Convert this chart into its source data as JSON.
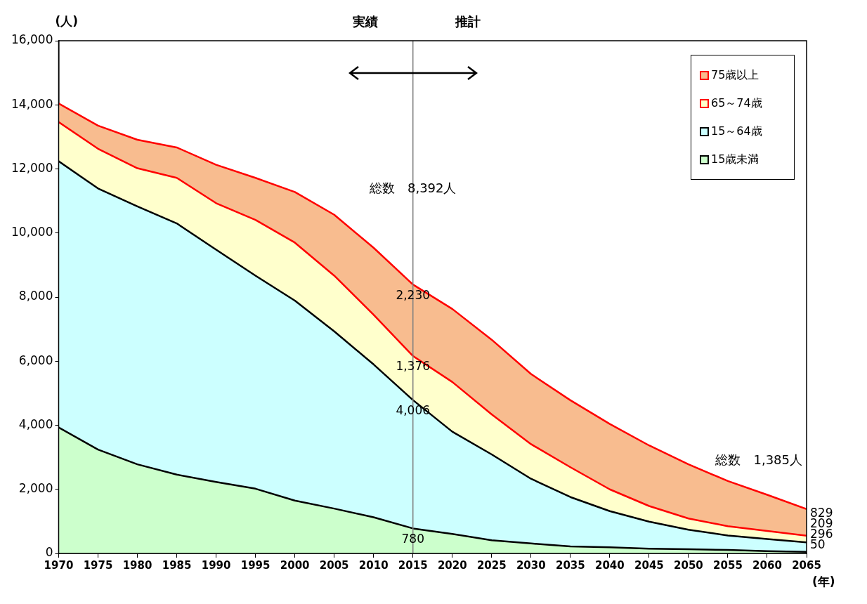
{
  "chart_data": {
    "type": "area",
    "stacked": true,
    "xlabel": "(年)",
    "ylabel": "(人)",
    "x": [
      1970,
      1975,
      1980,
      1985,
      1990,
      1995,
      2000,
      2005,
      2010,
      2015,
      2020,
      2025,
      2030,
      2035,
      2040,
      2045,
      2050,
      2055,
      2060,
      2065
    ],
    "xlim": [
      1970,
      2065
    ],
    "xticks": [
      1970,
      1975,
      1980,
      1985,
      1990,
      1995,
      2000,
      2005,
      2010,
      2015,
      2020,
      2025,
      2030,
      2035,
      2040,
      2045,
      2050,
      2055,
      2060,
      2065
    ],
    "ylim": [
      0,
      16000
    ],
    "yticks": [
      0,
      {
        "value": 2000,
        "label": "2,000"
      },
      {
        "value": 4000,
        "label": "4,000"
      },
      {
        "value": 6000,
        "label": "6,000"
      },
      {
        "value": 8000,
        "label": "8,000"
      },
      {
        "value": 10000,
        "label": "10,000"
      },
      {
        "value": 12000,
        "label": "12,000"
      },
      {
        "value": 14000,
        "label": "14,000"
      },
      {
        "value": 16000,
        "label": "16,000"
      }
    ],
    "grid": false,
    "legend": "top right",
    "marker": "none",
    "series": [
      {
        "name": "15歳未満",
        "color": "#ccffcc",
        "values": [
          3930,
          3240,
          2780,
          2460,
          2230,
          2020,
          1650,
          1400,
          1130,
          780,
          610,
          410,
          310,
          220,
          190,
          150,
          130,
          110,
          70,
          50
        ],
        "value_labels": [
          null,
          null,
          null,
          null,
          null,
          null,
          null,
          null,
          null,
          "780",
          null,
          null,
          null,
          null,
          null,
          null,
          null,
          null,
          null,
          "50"
        ]
      },
      {
        "name": "15～64歳",
        "color": "#ccffff",
        "values": [
          8310,
          8150,
          8050,
          7840,
          7250,
          6650,
          6240,
          5530,
          4770,
          4006,
          3190,
          2680,
          2020,
          1540,
          1130,
          840,
          610,
          450,
          380,
          296
        ],
        "value_labels": [
          null,
          null,
          null,
          null,
          null,
          null,
          null,
          null,
          null,
          "4,006",
          null,
          null,
          null,
          null,
          null,
          null,
          null,
          null,
          null,
          "296"
        ]
      },
      {
        "name": "65～74歳",
        "color": "#ffffcc",
        "values": [
          1220,
          1240,
          1190,
          1420,
          1450,
          1740,
          1810,
          1740,
          1550,
          1376,
          1550,
          1250,
          1080,
          930,
          680,
          490,
          350,
          290,
          250,
          209
        ],
        "value_labels": [
          null,
          null,
          null,
          null,
          null,
          null,
          null,
          null,
          null,
          "1,376",
          null,
          null,
          null,
          null,
          null,
          null,
          null,
          null,
          null,
          "209"
        ]
      },
      {
        "name": "75歳以上",
        "color": "#f8bc8f",
        "values": [
          580,
          720,
          890,
          950,
          1200,
          1310,
          1580,
          1900,
          2090,
          2230,
          2280,
          2330,
          2190,
          2090,
          2040,
          1890,
          1690,
          1410,
          1130,
          829
        ],
        "value_labels": [
          null,
          null,
          null,
          null,
          null,
          null,
          null,
          null,
          null,
          "2,230",
          null,
          null,
          null,
          null,
          null,
          null,
          null,
          null,
          null,
          "829"
        ]
      }
    ],
    "ref_lines": [
      {
        "axis": "x",
        "value": 2015,
        "color": "#808080"
      }
    ],
    "annotations": [
      "実績",
      "推計",
      "総数　8,392人",
      "総数　1,385人"
    ]
  }
}
